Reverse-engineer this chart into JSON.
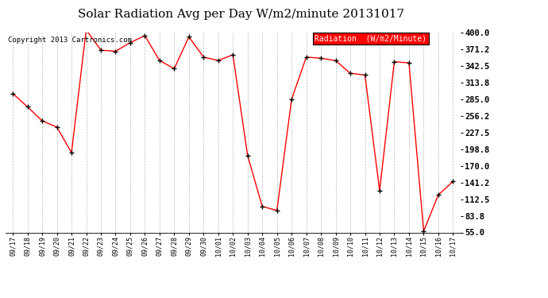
{
  "title": "Solar Radiation Avg per Day W/m2/minute 20131017",
  "copyright": "Copyright 2013 Cartronics.com",
  "legend_label": "Radiation  (W/m2/Minute)",
  "dates": [
    "09/17",
    "09/18",
    "09/19",
    "09/20",
    "09/21",
    "09/22",
    "09/23",
    "09/24",
    "09/25",
    "09/26",
    "09/27",
    "09/28",
    "09/29",
    "09/30",
    "10/01",
    "10/02",
    "10/03",
    "10/04",
    "10/05",
    "10/06",
    "10/07",
    "10/08",
    "10/09",
    "10/10",
    "10/11",
    "10/12",
    "10/13",
    "10/14",
    "10/15",
    "10/16",
    "10/17"
  ],
  "values": [
    295,
    272,
    248,
    237,
    193,
    405,
    370,
    368,
    383,
    395,
    352,
    338,
    393,
    358,
    352,
    362,
    188,
    100,
    93,
    285,
    358,
    356,
    352,
    330,
    327,
    127,
    350,
    348,
    57,
    120,
    143
  ],
  "y_ticks": [
    55.0,
    83.8,
    112.5,
    141.2,
    170.0,
    198.8,
    227.5,
    256.2,
    285.0,
    313.8,
    342.5,
    371.2,
    400.0
  ],
  "ylim": [
    55.0,
    400.0
  ],
  "line_color": "red",
  "marker_color": "black",
  "bg_color": "#ffffff",
  "grid_color": "#bbbbbb",
  "title_fontsize": 11,
  "copyright_fontsize": 6.5,
  "legend_fontsize": 7,
  "legend_bg": "red",
  "legend_fg": "white"
}
